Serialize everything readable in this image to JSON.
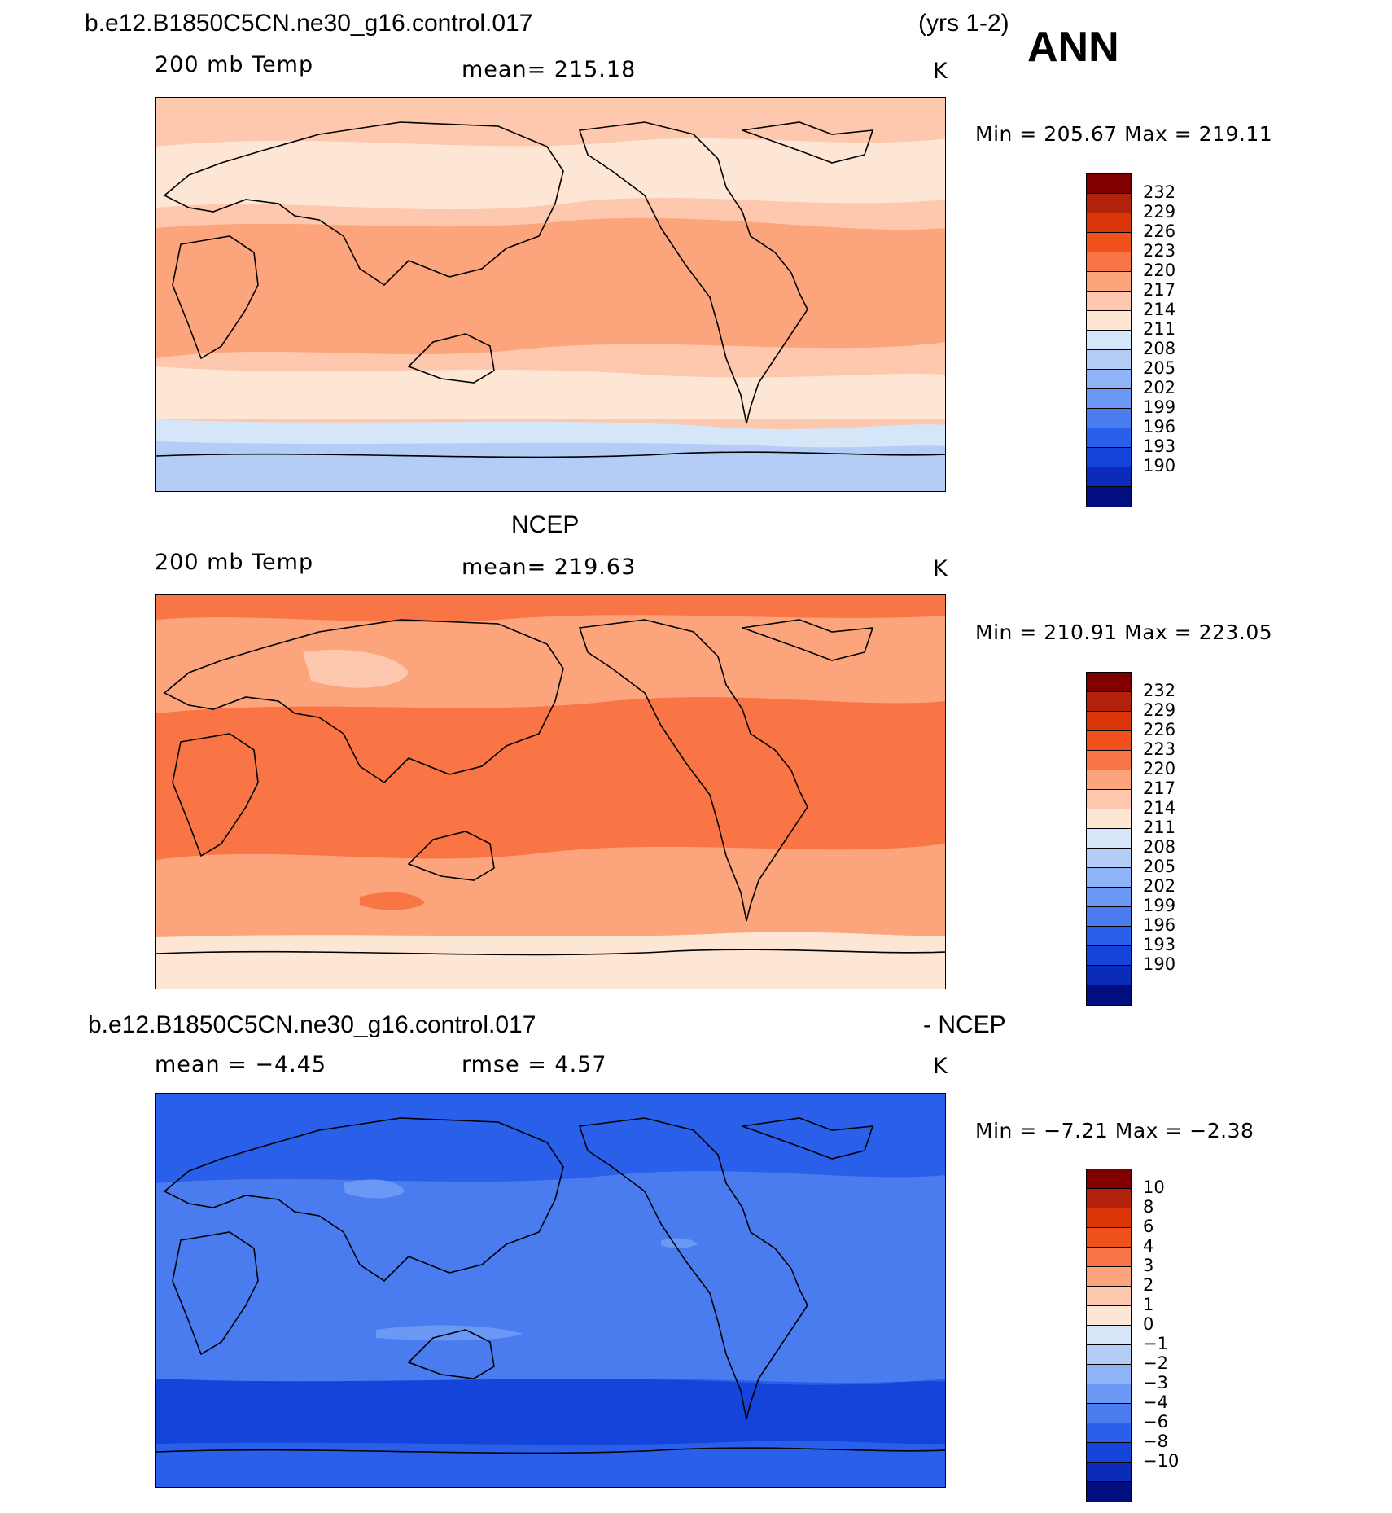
{
  "header": {
    "case_name": "b.e12.B1850C5CN.ne30_g16.control.017",
    "years": "(yrs 1-2)",
    "season": "ANN"
  },
  "panels": [
    {
      "id": "model",
      "title": "",
      "field": "200 mb Temp",
      "mean_text": "mean= 215.18",
      "units": "K",
      "minmax": "Min = 205.67 Max = 219.11",
      "palette": [
        "#800000",
        "#b2220a",
        "#db360a",
        "#f0501b",
        "#f97545",
        "#fca47c",
        "#fdc8ad",
        "#fde6d4",
        "#d6e6f9",
        "#b4cdf7",
        "#8fb3f7",
        "#6b98f4",
        "#4a7cf0",
        "#2a5fe9",
        "#1444d9",
        "#0a2cb8",
        "#000e80"
      ],
      "labels": [
        "232",
        "229",
        "226",
        "223",
        "220",
        "217",
        "214",
        "211",
        "208",
        "205",
        "202",
        "199",
        "196",
        "193",
        "190"
      ]
    },
    {
      "id": "obs",
      "title": "NCEP",
      "field": "200 mb Temp",
      "mean_text": "mean= 219.63",
      "units": "K",
      "minmax": "Min = 210.91 Max = 223.05",
      "palette": [
        "#800000",
        "#b2220a",
        "#db360a",
        "#f0501b",
        "#f97545",
        "#fca47c",
        "#fdc8ad",
        "#fde6d4",
        "#d6e6f9",
        "#b4cdf7",
        "#8fb3f7",
        "#6b98f4",
        "#4a7cf0",
        "#2a5fe9",
        "#1444d9",
        "#0a2cb8",
        "#000e80"
      ],
      "labels": [
        "232",
        "229",
        "226",
        "223",
        "220",
        "217",
        "214",
        "211",
        "208",
        "205",
        "202",
        "199",
        "196",
        "193",
        "190"
      ]
    },
    {
      "id": "diff",
      "title_left": "b.e12.B1850C5CN.ne30_g16.control.017",
      "title_right": "- NCEP",
      "mean_text": "mean =   −4.45",
      "rmse_text": "rmse =    4.57",
      "units": "K",
      "minmax": "Min =   −7.21 Max =   −2.38",
      "palette": [
        "#800000",
        "#b2220a",
        "#db360a",
        "#f0501b",
        "#f97545",
        "#fca47c",
        "#fdc8ad",
        "#fde6d4",
        "#d6e6f9",
        "#b4cdf7",
        "#8fb3f7",
        "#6b98f4",
        "#4a7cf0",
        "#2a5fe9",
        "#1444d9",
        "#0a2cb8",
        "#000e80"
      ],
      "labels": [
        "10",
        "8",
        "6",
        "4",
        "3",
        "2",
        "1",
        "0",
        "−1",
        "−2",
        "−3",
        "−4",
        "−6",
        "−8",
        "−10"
      ]
    }
  ]
}
